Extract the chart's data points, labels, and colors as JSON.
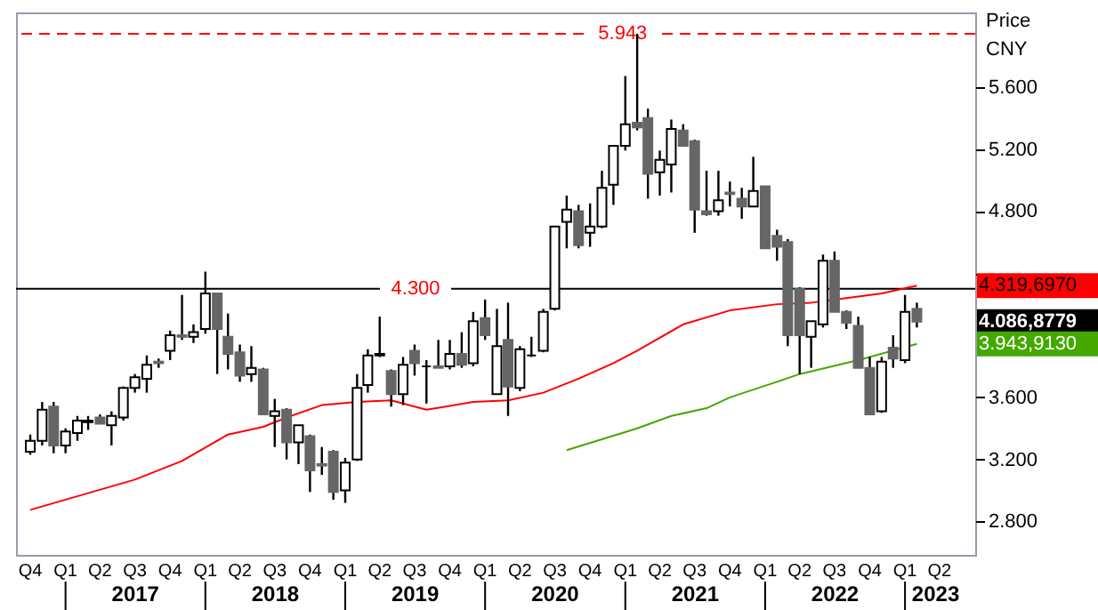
{
  "chart_data": {
    "type": "candlestick",
    "ylabel": "Price CNY",
    "x": [
      "2016-10",
      "2016-11",
      "2016-12",
      "2017-01",
      "2017-02",
      "2017-03",
      "2017-04",
      "2017-05",
      "2017-06",
      "2017-07",
      "2017-08",
      "2017-09",
      "2017-10",
      "2017-11",
      "2017-12",
      "2018-01",
      "2018-02",
      "2018-03",
      "2018-04",
      "2018-05",
      "2018-06",
      "2018-07",
      "2018-08",
      "2018-09",
      "2018-10",
      "2018-11",
      "2018-12",
      "2019-01",
      "2019-02",
      "2019-03",
      "2019-04",
      "2019-05",
      "2019-06",
      "2019-07",
      "2019-08",
      "2019-09",
      "2019-10",
      "2019-11",
      "2019-12",
      "2020-01",
      "2020-02",
      "2020-03",
      "2020-04",
      "2020-05",
      "2020-06",
      "2020-07",
      "2020-08",
      "2020-09",
      "2020-10",
      "2020-11",
      "2020-12",
      "2021-01",
      "2021-02",
      "2021-03",
      "2021-04",
      "2021-05",
      "2021-06",
      "2021-07",
      "2021-08",
      "2021-09",
      "2021-10",
      "2021-11",
      "2021-12",
      "2022-01",
      "2022-02",
      "2022-03",
      "2022-04",
      "2022-05",
      "2022-06",
      "2022-07",
      "2022-08",
      "2022-09",
      "2022-10",
      "2022-11",
      "2022-12",
      "2023-01",
      "2023-02"
    ],
    "ohlc": [
      [
        3250,
        3360,
        3230,
        3320
      ],
      [
        3320,
        3570,
        3290,
        3520
      ],
      [
        3540,
        3570,
        3240,
        3290
      ],
      [
        3290,
        3400,
        3240,
        3380
      ],
      [
        3370,
        3480,
        3320,
        3450
      ],
      [
        3440,
        3480,
        3390,
        3450
      ],
      [
        3470,
        3490,
        3430,
        3430
      ],
      [
        3420,
        3510,
        3290,
        3480
      ],
      [
        3470,
        3670,
        3450,
        3660
      ],
      [
        3660,
        3750,
        3630,
        3730
      ],
      [
        3720,
        3870,
        3630,
        3810
      ],
      [
        3830,
        3850,
        3790,
        3820
      ],
      [
        3900,
        4030,
        3840,
        4000
      ],
      [
        4000,
        4260,
        3970,
        3990
      ],
      [
        3990,
        4070,
        3950,
        4020
      ],
      [
        4040,
        4410,
        4010,
        4270
      ],
      [
        4270,
        4270,
        3750,
        4040
      ],
      [
        3990,
        4140,
        3780,
        3880
      ],
      [
        3890,
        3940,
        3700,
        3740
      ],
      [
        3750,
        3930,
        3700,
        3790
      ],
      [
        3780,
        3790,
        3490,
        3490
      ],
      [
        3480,
        3590,
        3280,
        3510
      ],
      [
        3520,
        3530,
        3200,
        3310
      ],
      [
        3310,
        3420,
        3170,
        3420
      ],
      [
        3350,
        3360,
        2990,
        3130
      ],
      [
        3170,
        3280,
        3100,
        3160
      ],
      [
        3250,
        3260,
        2940,
        2990
      ],
      [
        3000,
        3210,
        2920,
        3180
      ],
      [
        3200,
        3750,
        3190,
        3660
      ],
      [
        3680,
        3910,
        3630,
        3870
      ],
      [
        3870,
        4120,
        3860,
        3880
      ],
      [
        3770,
        3780,
        3540,
        3620
      ],
      [
        3620,
        3860,
        3550,
        3810
      ],
      [
        3900,
        3940,
        3740,
        3820
      ],
      [
        3800,
        3840,
        3560,
        3800
      ],
      [
        3800,
        3970,
        3790,
        3790
      ],
      [
        3800,
        3970,
        3780,
        3880
      ],
      [
        3880,
        4020,
        3790,
        3810
      ],
      [
        3820,
        4150,
        3800,
        4090
      ],
      [
        4110,
        4230,
        3970,
        4000
      ],
      [
        3620,
        4170,
        3620,
        3930
      ],
      [
        3970,
        4210,
        3480,
        3670
      ],
      [
        3660,
        3930,
        3640,
        3910
      ],
      [
        3870,
        3990,
        3860,
        3870
      ],
      [
        3900,
        4170,
        3890,
        4150
      ],
      [
        4170,
        4700,
        4160,
        4700
      ],
      [
        4730,
        4900,
        4560,
        4810
      ],
      [
        4800,
        4840,
        4560,
        4580
      ],
      [
        4660,
        4850,
        4570,
        4700
      ],
      [
        4700,
        5060,
        4690,
        4950
      ],
      [
        4970,
        5220,
        4840,
        5220
      ],
      [
        5220,
        5670,
        5190,
        5360
      ],
      [
        5370,
        5943,
        5320,
        5340
      ],
      [
        5400,
        5460,
        4880,
        5040
      ],
      [
        5050,
        5190,
        4900,
        5130
      ],
      [
        5100,
        5390,
        4920,
        5330
      ],
      [
        5320,
        5360,
        5220,
        5220
      ],
      [
        5250,
        5260,
        4660,
        4810
      ],
      [
        4800,
        5060,
        4770,
        4780
      ],
      [
        4800,
        5060,
        4770,
        4870
      ],
      [
        4920,
        4990,
        4830,
        4910
      ],
      [
        4880,
        4950,
        4750,
        4830
      ],
      [
        4830,
        5150,
        4830,
        4930
      ],
      [
        4960,
        4960,
        4560,
        4560
      ],
      [
        4640,
        4680,
        4480,
        4570
      ],
      [
        4600,
        4620,
        3930,
        4000
      ],
      [
        4300,
        4310,
        3750,
        4000
      ],
      [
        3990,
        4090,
        3790,
        4090
      ],
      [
        4070,
        4520,
        4050,
        4480
      ],
      [
        4480,
        4540,
        4150,
        4150
      ],
      [
        4150,
        4160,
        4040,
        4080
      ],
      [
        4060,
        4120,
        3790,
        3790
      ],
      [
        3790,
        3860,
        3490,
        3490
      ],
      [
        3510,
        3860,
        3500,
        3830
      ],
      [
        3920,
        4000,
        3790,
        3850
      ],
      [
        3840,
        4260,
        3820,
        4150
      ],
      [
        4170,
        4210,
        4050,
        4087
      ]
    ],
    "series": [
      {
        "type": "line",
        "color": "#ff0000",
        "x": [
          "2016-10",
          "2017-07",
          "2017-11",
          "2018-03",
          "2018-06",
          "2018-08",
          "2018-11",
          "2019-02",
          "2019-05",
          "2019-08",
          "2019-12",
          "2020-03",
          "2020-06",
          "2020-09",
          "2020-12",
          "2021-02",
          "2021-06",
          "2021-10",
          "2022-02",
          "2022-05",
          "2022-08",
          "2022-11",
          "2023-02"
        ],
        "values": [
          2875,
          3070,
          3190,
          3360,
          3410,
          3470,
          3550,
          3570,
          3580,
          3520,
          3570,
          3580,
          3630,
          3720,
          3820,
          3900,
          4070,
          4160,
          4200,
          4210,
          4240,
          4270,
          4320
        ]
      },
      {
        "type": "line",
        "color": "#44a800",
        "x": [
          "2020-08",
          "2021-02",
          "2021-05",
          "2021-08",
          "2021-10",
          "2022-02",
          "2022-04",
          "2022-09",
          "2023-02"
        ],
        "values": [
          3260,
          3400,
          3480,
          3530,
          3600,
          3700,
          3750,
          3840,
          3944
        ]
      }
    ],
    "xlim": [
      "2016-09-17",
      "2023-06-10"
    ],
    "xticks": [
      {
        "value": "2016-10",
        "label": "Q4"
      },
      {
        "value": "2017-01",
        "label": "Q1"
      },
      {
        "value": "2017-04",
        "label": "Q2"
      },
      {
        "value": "2017-07",
        "label": "Q3"
      },
      {
        "value": "2017-10",
        "label": "Q4"
      },
      {
        "value": "2018-01",
        "label": "Q1"
      },
      {
        "value": "2018-04",
        "label": "Q2"
      },
      {
        "value": "2018-07",
        "label": "Q3"
      },
      {
        "value": "2018-10",
        "label": "Q4"
      },
      {
        "value": "2019-01",
        "label": "Q1"
      },
      {
        "value": "2019-04",
        "label": "Q2"
      },
      {
        "value": "2019-07",
        "label": "Q3"
      },
      {
        "value": "2019-10",
        "label": "Q4"
      },
      {
        "value": "2020-01",
        "label": "Q1"
      },
      {
        "value": "2020-04",
        "label": "Q2"
      },
      {
        "value": "2020-07",
        "label": "Q3"
      },
      {
        "value": "2020-10",
        "label": "Q4"
      },
      {
        "value": "2021-01",
        "label": "Q1"
      },
      {
        "value": "2021-04",
        "label": "Q2"
      },
      {
        "value": "2021-07",
        "label": "Q3"
      },
      {
        "value": "2021-10",
        "label": "Q4"
      },
      {
        "value": "2022-01",
        "label": "Q1"
      },
      {
        "value": "2022-04",
        "label": "Q2"
      },
      {
        "value": "2022-07",
        "label": "Q3"
      },
      {
        "value": "2022-10",
        "label": "Q4"
      },
      {
        "value": "2023-01",
        "label": "Q1"
      },
      {
        "value": "2023-04",
        "label": "Q2"
      }
    ],
    "ylim": [
      2585,
      6080
    ],
    "yticks": [
      {
        "value": 2800,
        "label": "2.800"
      },
      {
        "value": 3200,
        "label": "3.200"
      },
      {
        "value": 3600,
        "label": "3.600"
      },
      {
        "value": 4400,
        "label": null
      },
      {
        "value": 4800,
        "label": "4.800"
      },
      {
        "value": 5200,
        "label": "5.200"
      },
      {
        "value": 5600,
        "label": "5.600"
      }
    ],
    "ref_lines": [
      {
        "axis": "y",
        "value": 5943,
        "label": "5.943",
        "color": "#ff0000",
        "line_style": "dashed"
      },
      {
        "axis": "y",
        "value": 4300,
        "label": "4.300",
        "color": "#000000",
        "line_style": "solid"
      }
    ],
    "annotations": [
      "2017",
      "2018",
      "2019",
      "2020",
      "2021",
      "2022",
      "2023",
      "4.319,6970",
      "4.086,8779",
      "3.943,9130"
    ]
  }
}
